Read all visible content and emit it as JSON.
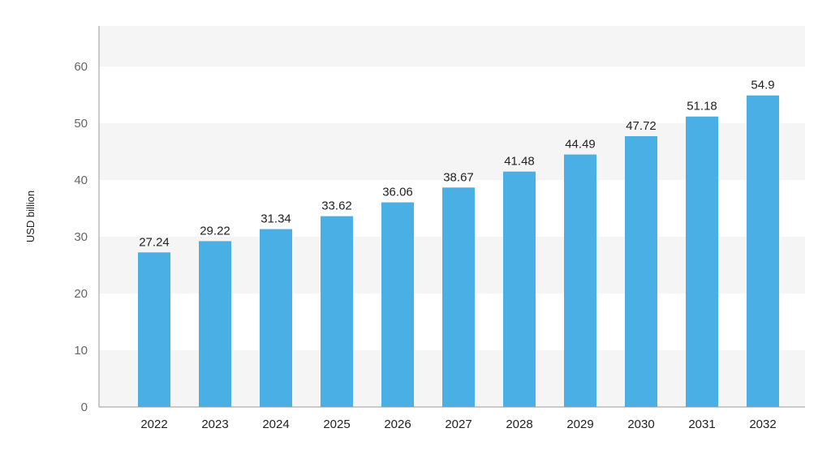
{
  "chart_data": {
    "type": "bar",
    "ylabel": "USD billion",
    "xlabel": "",
    "categories": [
      "2022",
      "2023",
      "2024",
      "2025",
      "2026",
      "2027",
      "2028",
      "2029",
      "2030",
      "2031",
      "2032"
    ],
    "values": [
      27.24,
      29.22,
      31.34,
      33.62,
      36.06,
      38.67,
      41.48,
      44.49,
      47.72,
      51.18,
      54.9
    ],
    "value_labels": [
      "27.24",
      "29.22",
      "31.34",
      "33.62",
      "36.06",
      "38.67",
      "41.48",
      "44.49",
      "47.72",
      "51.18",
      "54.9"
    ],
    "ylim": [
      0,
      60
    ],
    "yticks": [
      "0",
      "10",
      "20",
      "30",
      "40",
      "50",
      "60"
    ],
    "grid": "alternating horizontal bands",
    "legend": "none",
    "colors": {
      "bar": "#4aafe5",
      "band": "#f5f5f5",
      "axis": "#999999"
    }
  }
}
